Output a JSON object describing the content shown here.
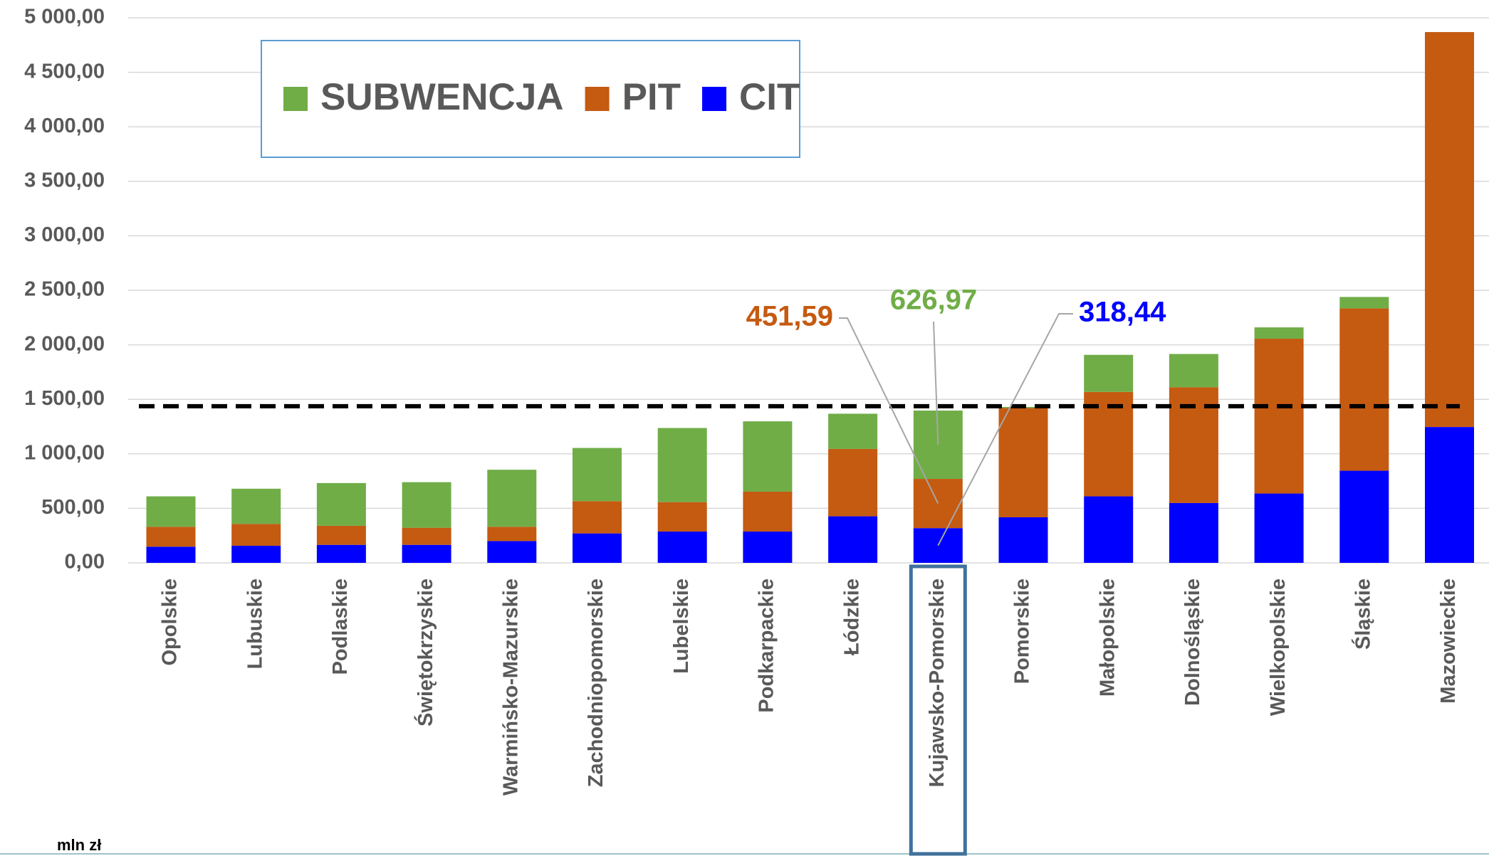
{
  "chart_data": {
    "type": "stacked_bar",
    "categories": [
      "Opolskie",
      "Lubuskie",
      "Podlaskie",
      "Świętokrzyskie",
      "Warmińsko-Mazurskie",
      "Zachodniopomorskie",
      "Lubelskie",
      "Podkarpackie",
      "Łódzkie",
      "Kujawsko-Pomorskie",
      "Pomorskie",
      "Małopolskie",
      "Dolnośląskie",
      "Wielkopolskie",
      "Śląskie",
      "Mazowieckie"
    ],
    "series": [
      {
        "name": "CIT",
        "color": "#0000ff",
        "values": [
          148,
          157,
          165,
          165,
          200,
          270,
          287,
          287,
          427,
          318.44,
          418,
          610,
          549,
          636,
          845,
          1246
        ],
        "value_labels": [
          null,
          null,
          null,
          null,
          null,
          null,
          null,
          null,
          null,
          "318,44",
          null,
          null,
          null,
          null,
          null,
          null
        ]
      },
      {
        "name": "PIT",
        "color": "#c55a11",
        "values": [
          183,
          200,
          175,
          157,
          131,
          296,
          270,
          366,
          618,
          451.59,
          1002,
          958,
          1062,
          1420,
          1489,
          3623
        ],
        "value_labels": [
          null,
          null,
          null,
          null,
          null,
          null,
          null,
          null,
          null,
          "451,59",
          null,
          null,
          null,
          null,
          null,
          null
        ]
      },
      {
        "name": "SUBWENCJA",
        "color": "#70ad47",
        "values": [
          279,
          323,
          392,
          418,
          523,
          488,
          680,
          645,
          323,
          626.97,
          10,
          340,
          305,
          104,
          105,
          0
        ],
        "value_labels": [
          null,
          null,
          null,
          null,
          null,
          null,
          null,
          null,
          null,
          "626,97",
          null,
          null,
          null,
          null,
          null,
          null
        ]
      }
    ],
    "ylim": [
      0,
      5000
    ],
    "yticks": [
      {
        "value": 0,
        "label": "0,00"
      },
      {
        "value": 500,
        "label": "500,00"
      },
      {
        "value": 1000,
        "label": "1 000,00"
      },
      {
        "value": 1500,
        "label": "1 500,00"
      },
      {
        "value": 2000,
        "label": "2 000,00"
      },
      {
        "value": 2500,
        "label": "2 500,00"
      },
      {
        "value": 3000,
        "label": "3 000,00"
      },
      {
        "value": 3500,
        "label": "3 500,00"
      },
      {
        "value": 4000,
        "label": "4 000,00"
      },
      {
        "value": 4500,
        "label": "4 500,00"
      },
      {
        "value": 5000,
        "label": "5 000,00"
      }
    ],
    "reference_line": 1437,
    "highlight_index": 9,
    "unit_label": "mln zł",
    "legend": "top-left"
  }
}
